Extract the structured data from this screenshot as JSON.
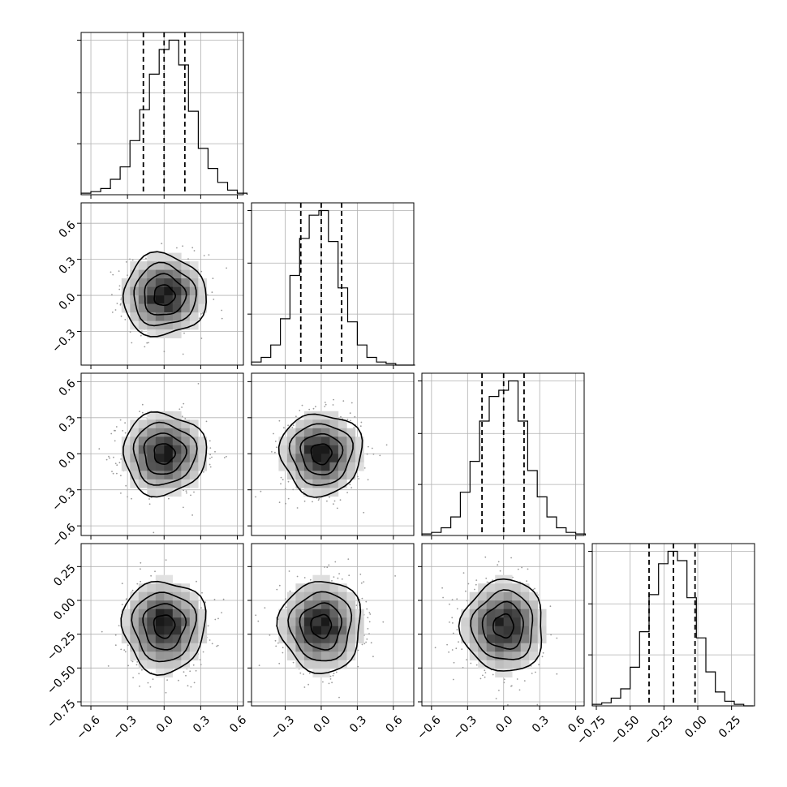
{
  "chart_data": {
    "type": "corner",
    "n_parameters": 4,
    "parameters": [
      {
        "index": 0,
        "xlim": [
          -0.68,
          0.65
        ],
        "ticks": [
          -0.6,
          -0.3,
          0.0,
          0.3,
          0.6
        ],
        "tick_labels": [
          "−0.6",
          "−0.3",
          "0.0",
          "0.3",
          "0.6"
        ],
        "mean": 0.0,
        "std": 0.17,
        "quantiles": [
          -0.17,
          0.0,
          0.17
        ]
      },
      {
        "index": 1,
        "xlim": [
          -0.58,
          0.77
        ],
        "ticks": [
          -0.3,
          0.0,
          0.3,
          0.6
        ],
        "tick_labels": [
          "−0.3",
          "0.0",
          "0.3",
          "0.6"
        ],
        "mean": 0.0,
        "std": 0.17,
        "quantiles": [
          -0.17,
          0.0,
          0.17
        ]
      },
      {
        "index": 2,
        "xlim": [
          -0.68,
          0.67
        ],
        "ticks": [
          -0.6,
          -0.3,
          0.0,
          0.3,
          0.6
        ],
        "tick_labels": [
          "−0.6",
          "−0.3",
          "0.0",
          "0.3",
          "0.6"
        ],
        "mean": 0.0,
        "std": 0.17,
        "quantiles": [
          -0.18,
          0.0,
          0.17
        ]
      },
      {
        "index": 3,
        "xlim": [
          -0.78,
          0.42
        ],
        "ticks": [
          -0.75,
          -0.5,
          -0.25,
          0.0,
          0.25
        ],
        "tick_labels": [
          "−0.75",
          "−0.50",
          "−0.25",
          "0.00",
          "0.25"
        ],
        "mean": -0.19,
        "std": 0.17,
        "quantiles": [
          -0.36,
          -0.18,
          -0.02
        ]
      }
    ],
    "histograms": [
      {
        "param": 0,
        "bin_edges": [
          -0.68,
          -0.6,
          -0.52,
          -0.44,
          -0.36,
          -0.28,
          -0.2,
          -0.12,
          -0.04,
          0.04,
          0.12,
          0.2,
          0.28,
          0.36,
          0.44,
          0.52,
          0.6,
          0.68
        ],
        "counts": [
          0.01,
          0.02,
          0.04,
          0.1,
          0.18,
          0.35,
          0.55,
          0.78,
          0.94,
          1.0,
          0.84,
          0.54,
          0.3,
          0.17,
          0.08,
          0.03,
          0.01
        ]
      },
      {
        "param": 1,
        "bin_edges": [
          -0.58,
          -0.5,
          -0.42,
          -0.34,
          -0.26,
          -0.18,
          -0.1,
          -0.02,
          0.06,
          0.14,
          0.22,
          0.3,
          0.38,
          0.46,
          0.54,
          0.62,
          0.7,
          0.78
        ],
        "counts": [
          0.02,
          0.05,
          0.13,
          0.3,
          0.58,
          0.82,
          0.97,
          1.0,
          0.8,
          0.5,
          0.28,
          0.13,
          0.05,
          0.02,
          0.01,
          0.0,
          0.0
        ]
      },
      {
        "param": 2,
        "bin_edges": [
          -0.68,
          -0.6,
          -0.52,
          -0.44,
          -0.36,
          -0.28,
          -0.2,
          -0.12,
          -0.04,
          0.04,
          0.12,
          0.2,
          0.28,
          0.36,
          0.44,
          0.52,
          0.6,
          0.68
        ],
        "counts": [
          0.01,
          0.02,
          0.05,
          0.12,
          0.28,
          0.48,
          0.74,
          0.9,
          0.94,
          1.0,
          0.74,
          0.42,
          0.25,
          0.12,
          0.05,
          0.02,
          0.01
        ]
      },
      {
        "param": 3,
        "bin_edges": [
          -0.78,
          -0.71,
          -0.64,
          -0.57,
          -0.5,
          -0.43,
          -0.36,
          -0.29,
          -0.22,
          -0.15,
          -0.08,
          -0.01,
          0.06,
          0.13,
          0.2,
          0.27,
          0.34,
          0.41
        ],
        "counts": [
          0.01,
          0.02,
          0.05,
          0.11,
          0.25,
          0.48,
          0.72,
          0.92,
          1.0,
          0.94,
          0.7,
          0.44,
          0.22,
          0.09,
          0.03,
          0.01,
          0.0
        ]
      }
    ],
    "pairs": [
      {
        "x_param": 0,
        "y_param": 1,
        "mean": [
          0.0,
          0.0
        ],
        "sigma": [
          0.17,
          0.17
        ]
      },
      {
        "x_param": 0,
        "y_param": 2,
        "mean": [
          0.0,
          0.0
        ],
        "sigma": [
          0.17,
          0.17
        ]
      },
      {
        "x_param": 1,
        "y_param": 2,
        "mean": [
          0.0,
          0.0
        ],
        "sigma": [
          0.17,
          0.17
        ]
      },
      {
        "x_param": 0,
        "y_param": 3,
        "mean": [
          0.0,
          -0.19
        ],
        "sigma": [
          0.17,
          0.17
        ]
      },
      {
        "x_param": 1,
        "y_param": 3,
        "mean": [
          0.0,
          -0.19
        ],
        "sigma": [
          0.17,
          0.17
        ]
      },
      {
        "x_param": 2,
        "y_param": 3,
        "mean": [
          0.0,
          -0.19
        ],
        "sigma": [
          0.17,
          0.17
        ]
      }
    ],
    "contour_levels_sigma": [
      0.5,
      1.0,
      1.5,
      2.0
    ],
    "grid": true,
    "colors": {
      "line": "#000000",
      "points": "#9a9a9a",
      "grid": "#b0b0b0"
    },
    "title": "",
    "xlabel": "",
    "ylabel": ""
  }
}
